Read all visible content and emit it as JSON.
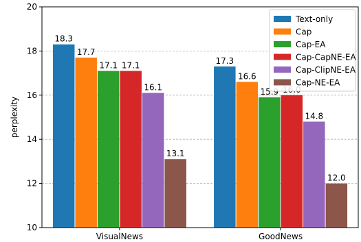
{
  "chart_data": {
    "type": "bar",
    "title": "",
    "xlabel": "",
    "ylabel": "perplexity",
    "ylim": [
      10,
      20
    ],
    "yticks": [
      "10",
      "12",
      "14",
      "16",
      "18",
      "20"
    ],
    "categories": [
      "VisualNews",
      "GoodNews"
    ],
    "grid": "horizontal dashed",
    "legend_position": "top-right",
    "series": [
      {
        "name": "Text-only",
        "color": "#1f77b4",
        "values": [
          18.3,
          17.3
        ],
        "labels": [
          "18.3",
          "17.3"
        ]
      },
      {
        "name": "Cap",
        "color": "#ff7f0e",
        "values": [
          17.7,
          16.6
        ],
        "labels": [
          "17.7",
          "16.6"
        ]
      },
      {
        "name": "Cap-EA",
        "color": "#2ca02c",
        "values": [
          17.1,
          15.9
        ],
        "labels": [
          "17.1",
          "15.9"
        ]
      },
      {
        "name": "Cap-CapNE-EA",
        "color": "#d62728",
        "values": [
          17.1,
          16.0
        ],
        "labels": [
          "17.1",
          "16.0"
        ]
      },
      {
        "name": "Cap-ClipNE-EA",
        "color": "#9467bd",
        "values": [
          16.1,
          14.8
        ],
        "labels": [
          "16.1",
          "14.8"
        ]
      },
      {
        "name": "Cap-NE-EA",
        "color": "#8c564b",
        "values": [
          13.1,
          12.0
        ],
        "labels": [
          "13.1",
          "12.0"
        ]
      }
    ]
  }
}
